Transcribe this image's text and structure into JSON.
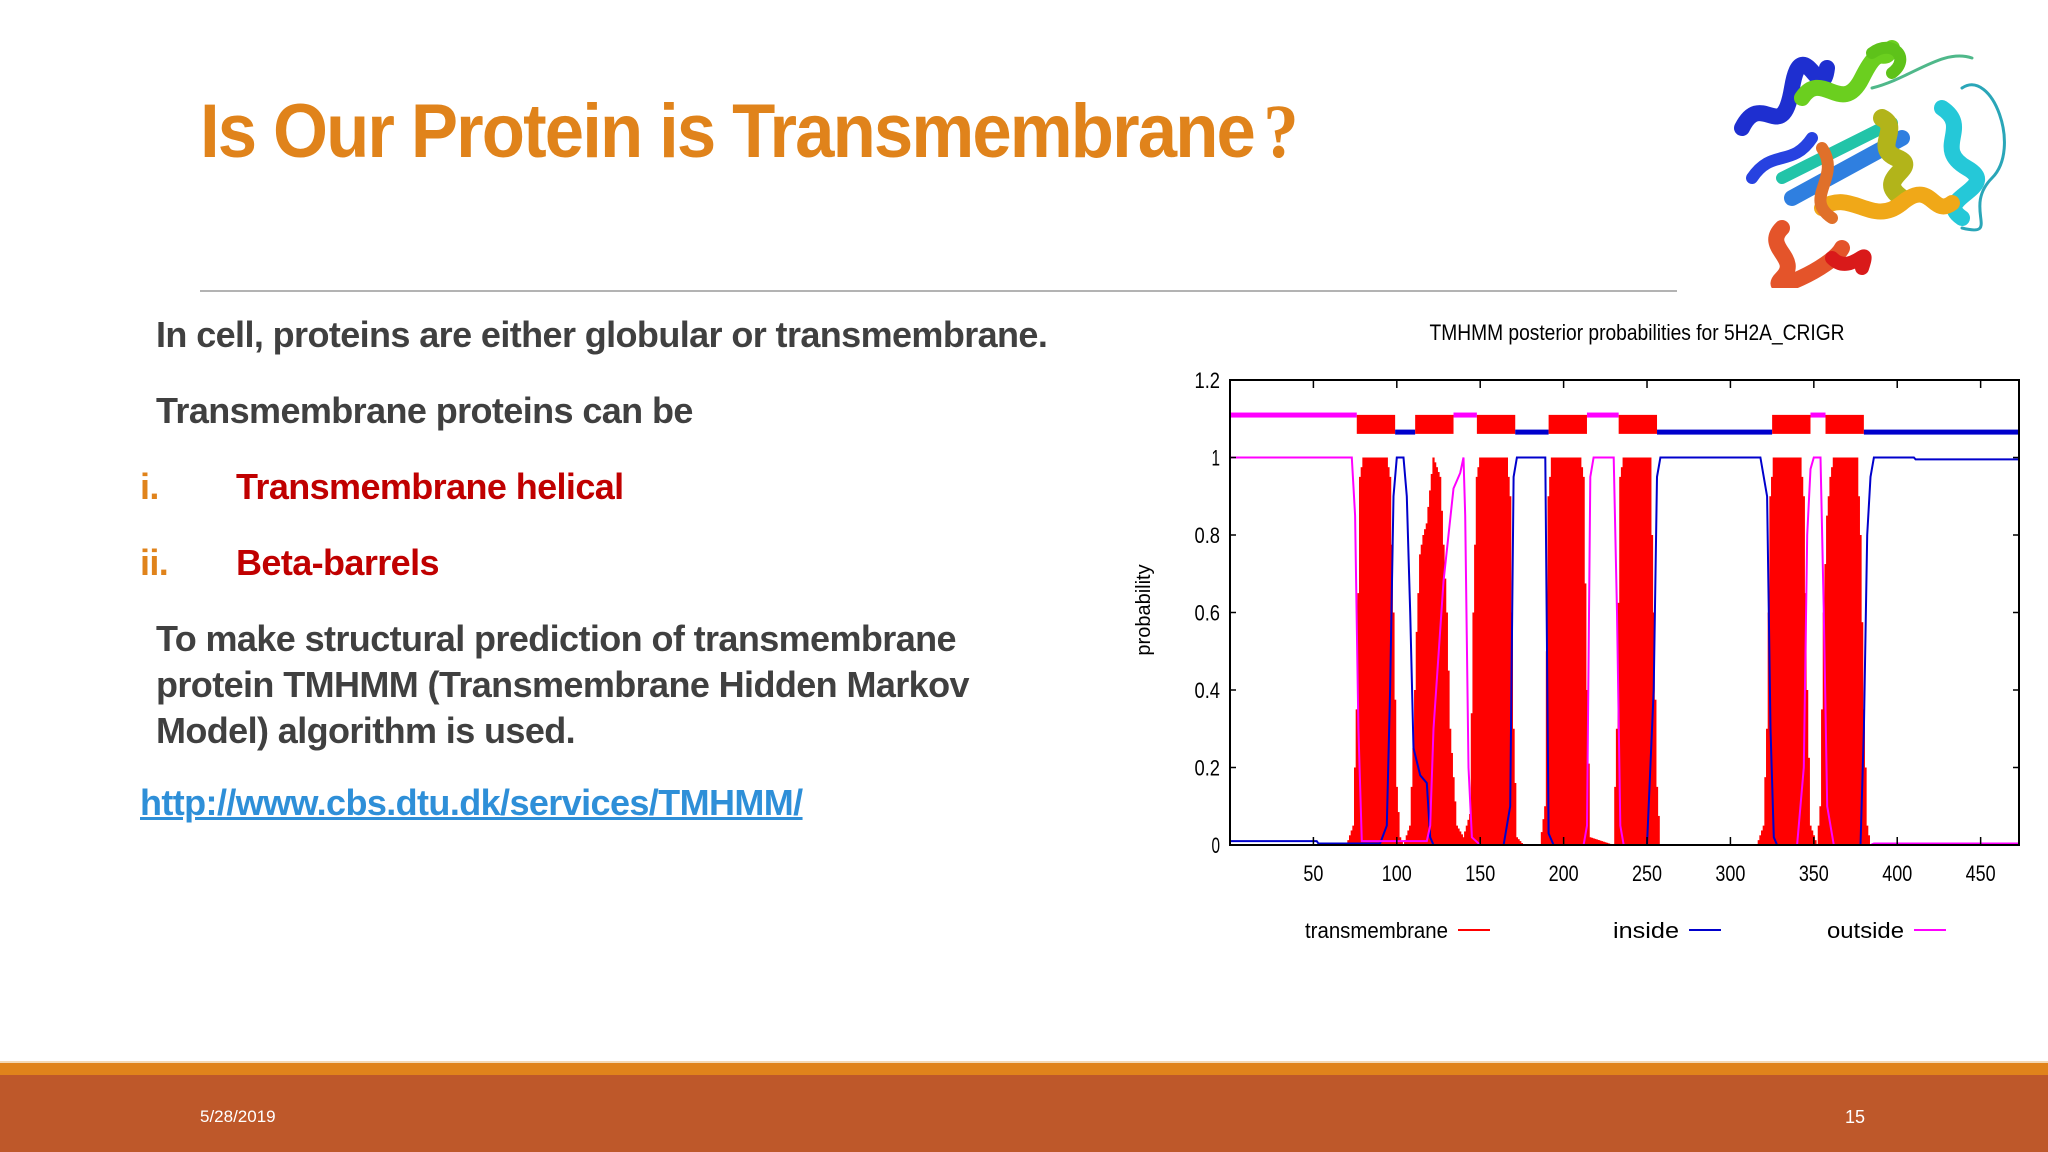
{
  "slide": {
    "title": "Is Our Protein is Transmembrane",
    "title_qmark": "?",
    "colors": {
      "title": "#E0831B",
      "body_text": "#404040",
      "list_number": "#E0831B",
      "list_text": "#C00000",
      "link": "#2E8FD8",
      "footer": "#BE582A",
      "footer_stripe": "#E0831B"
    },
    "image": {
      "icon": "protein-ribbon-structure",
      "description": "3D ribbon structure of a protein (rainbow-colored)"
    }
  },
  "content": {
    "para1": "In cell, proteins are either globular or transmembrane.",
    "para2": "Transmembrane proteins can be",
    "list": [
      {
        "num": "i.",
        "text": "Transmembrane helical"
      },
      {
        "num": "ii.",
        "text": "Beta-barrels"
      }
    ],
    "para3": "To make structural prediction of transmembrane protein TMHMM (Transmembrane Hidden Markov Model)  algorithm is used.",
    "link": "http://www.cbs.dtu.dk/services/TMHMM/"
  },
  "footer": {
    "date": "5/28/2019",
    "page": "15"
  },
  "chart_data": {
    "type": "line",
    "title": "TMHMM posterior probabilities for 5H2A_CRIGR",
    "xlabel": "",
    "ylabel": "probability",
    "xlim": [
      0,
      473
    ],
    "ylim": [
      0,
      1.2
    ],
    "x_ticks": [
      50,
      100,
      150,
      200,
      250,
      300,
      350,
      400,
      450
    ],
    "y_ticks": [
      0,
      0.2,
      0.4,
      0.6,
      0.8,
      1,
      1.2
    ],
    "y_tick_labels": [
      "0",
      "0.2",
      "0.4",
      "0.6",
      "0.8",
      "1",
      "1.2"
    ],
    "grid": false,
    "legend_position": "bottom",
    "legend": [
      {
        "name": "transmembrane",
        "color": "#FF0000"
      },
      {
        "name": "inside",
        "color": "#0000CC"
      },
      {
        "name": "outside",
        "color": "#FF00FF"
      }
    ],
    "topology": [
      {
        "type": "outside",
        "start": 1,
        "end": 76
      },
      {
        "type": "transmembrane",
        "start": 77,
        "end": 99
      },
      {
        "type": "inside",
        "start": 100,
        "end": 111
      },
      {
        "type": "transmembrane",
        "start": 112,
        "end": 134
      },
      {
        "type": "outside",
        "start": 135,
        "end": 148
      },
      {
        "type": "transmembrane",
        "start": 149,
        "end": 171
      },
      {
        "type": "inside",
        "start": 172,
        "end": 191
      },
      {
        "type": "transmembrane",
        "start": 192,
        "end": 214
      },
      {
        "type": "outside",
        "start": 215,
        "end": 233
      },
      {
        "type": "transmembrane",
        "start": 234,
        "end": 256
      },
      {
        "type": "inside",
        "start": 257,
        "end": 325
      },
      {
        "type": "transmembrane",
        "start": 326,
        "end": 348
      },
      {
        "type": "outside",
        "start": 349,
        "end": 357
      },
      {
        "type": "transmembrane",
        "start": 358,
        "end": 380
      },
      {
        "type": "inside",
        "start": 381,
        "end": 473
      }
    ],
    "series": [
      {
        "name": "transmembrane",
        "color": "#FF0000",
        "style": "impulses",
        "points": [
          [
            0,
            0
          ],
          [
            70,
            0
          ],
          [
            74,
            0.05
          ],
          [
            76,
            0.35
          ],
          [
            78,
            0.95
          ],
          [
            80,
            1
          ],
          [
            94,
            1
          ],
          [
            96,
            0.95
          ],
          [
            98,
            0.6
          ],
          [
            100,
            0.15
          ],
          [
            102,
            0.02
          ],
          [
            104,
            0
          ],
          [
            108,
            0.05
          ],
          [
            110,
            0.25
          ],
          [
            112,
            0.55
          ],
          [
            114,
            0.75
          ],
          [
            116,
            0.8
          ],
          [
            118,
            0.83
          ],
          [
            122,
            1
          ],
          [
            126,
            0.95
          ],
          [
            130,
            0.6
          ],
          [
            132,
            0.3
          ],
          [
            136,
            0.05
          ],
          [
            140,
            0.02
          ],
          [
            144,
            0.08
          ],
          [
            146,
            0.6
          ],
          [
            148,
            0.95
          ],
          [
            150,
            1
          ],
          [
            166,
            1
          ],
          [
            168,
            0.9
          ],
          [
            170,
            0.3
          ],
          [
            172,
            0.02
          ],
          [
            176,
            0
          ],
          [
            186,
            0
          ],
          [
            189,
            0.1
          ],
          [
            191,
            0.9
          ],
          [
            193,
            1
          ],
          [
            210,
            1
          ],
          [
            212,
            0.95
          ],
          [
            214,
            0.4
          ],
          [
            216,
            0.02
          ],
          [
            230,
            0
          ],
          [
            232,
            0.3
          ],
          [
            234,
            0.95
          ],
          [
            236,
            1
          ],
          [
            252,
            1
          ],
          [
            254,
            0.6
          ],
          [
            256,
            0.15
          ],
          [
            258,
            0
          ],
          [
            316,
            0
          ],
          [
            320,
            0.05
          ],
          [
            322,
            0.3
          ],
          [
            324,
            0.9
          ],
          [
            326,
            1
          ],
          [
            342,
            1
          ],
          [
            344,
            0.9
          ],
          [
            346,
            0.4
          ],
          [
            348,
            0.05
          ],
          [
            352,
            0
          ],
          [
            354,
            0.1
          ],
          [
            356,
            0.6
          ],
          [
            358,
            0.85
          ],
          [
            360,
            0.95
          ],
          [
            362,
            1
          ],
          [
            376,
            1
          ],
          [
            378,
            0.8
          ],
          [
            380,
            0.35
          ],
          [
            382,
            0.05
          ],
          [
            384,
            0
          ],
          [
            473,
            0
          ]
        ]
      },
      {
        "name": "inside",
        "color": "#0000CC",
        "style": "line",
        "points": [
          [
            0,
            0.01
          ],
          [
            52,
            0.01
          ],
          [
            53,
            0.004
          ],
          [
            90,
            0.004
          ],
          [
            94,
            0.05
          ],
          [
            96,
            0.4
          ],
          [
            98,
            0.9
          ],
          [
            100,
            1
          ],
          [
            104,
            1
          ],
          [
            106,
            0.9
          ],
          [
            108,
            0.6
          ],
          [
            110,
            0.25
          ],
          [
            114,
            0.18
          ],
          [
            118,
            0.16
          ],
          [
            120,
            0.02
          ],
          [
            122,
            0
          ],
          [
            164,
            0
          ],
          [
            168,
            0.1
          ],
          [
            170,
            0.95
          ],
          [
            172,
            1
          ],
          [
            189,
            1
          ],
          [
            191,
            0.03
          ],
          [
            194,
            0
          ],
          [
            250,
            0
          ],
          [
            254,
            0.4
          ],
          [
            256,
            0.95
          ],
          [
            258,
            1
          ],
          [
            318,
            1
          ],
          [
            322,
            0.9
          ],
          [
            324,
            0.3
          ],
          [
            326,
            0.02
          ],
          [
            328,
            0
          ],
          [
            378,
            0
          ],
          [
            380,
            0.3
          ],
          [
            382,
            0.8
          ],
          [
            384,
            0.95
          ],
          [
            386,
            1
          ],
          [
            410,
            1
          ],
          [
            411,
            0.995
          ],
          [
            473,
            0.995
          ]
        ]
      },
      {
        "name": "outside",
        "color": "#FF00FF",
        "style": "line",
        "points": [
          [
            0,
            1
          ],
          [
            73,
            1
          ],
          [
            75,
            0.85
          ],
          [
            77,
            0.3
          ],
          [
            79,
            0.01
          ],
          [
            118,
            0.01
          ],
          [
            120,
            0.05
          ],
          [
            122,
            0.3
          ],
          [
            128,
            0.68
          ],
          [
            134,
            0.92
          ],
          [
            138,
            0.96
          ],
          [
            140,
            1
          ],
          [
            141,
            0.85
          ],
          [
            143,
            0.2
          ],
          [
            145,
            0.02
          ],
          [
            150,
            0
          ],
          [
            212,
            0
          ],
          [
            214,
            0.05
          ],
          [
            216,
            0.95
          ],
          [
            218,
            1
          ],
          [
            230,
            1
          ],
          [
            232,
            0.6
          ],
          [
            234,
            0.05
          ],
          [
            236,
            0
          ],
          [
            340,
            0
          ],
          [
            344,
            0.2
          ],
          [
            346,
            0.8
          ],
          [
            348,
            0.97
          ],
          [
            350,
            1
          ],
          [
            354,
            1
          ],
          [
            356,
            0.6
          ],
          [
            358,
            0.1
          ],
          [
            362,
            0
          ],
          [
            384,
            0
          ],
          [
            386,
            0.004
          ],
          [
            473,
            0.004
          ]
        ]
      }
    ]
  }
}
